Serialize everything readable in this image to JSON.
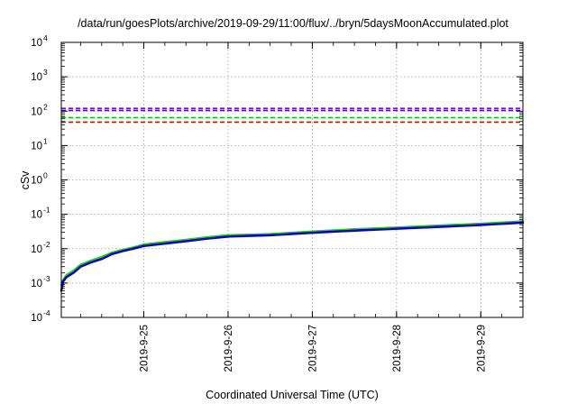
{
  "colors": {
    "background": "#ffffff",
    "frame": "#000000",
    "grid": "#a0a0a0",
    "series_blue": "#0000cc",
    "series_green": "#22cc22",
    "threshold_purple": "#9400d3",
    "threshold_blue": "#2222bb",
    "threshold_green": "#00cc00",
    "threshold_red": "#dd0000"
  },
  "chart_data": {
    "type": "line",
    "title": "/data/run/goesPlots/archive/2019-09-29/11:00/flux/../bryn/5daysMoonAccumulated.plot",
    "xlabel": "Coordinated Universal Time (UTC)",
    "ylabel": "cSv",
    "y_scale": "log",
    "ylim": [
      0.0001,
      10000
    ],
    "y_ticks": [
      {
        "value": 0.0001,
        "base": "10",
        "exp": "-4"
      },
      {
        "value": 0.001,
        "base": "10",
        "exp": "-3"
      },
      {
        "value": 0.01,
        "base": "10",
        "exp": "-2"
      },
      {
        "value": 0.1,
        "base": "10",
        "exp": "-1"
      },
      {
        "value": 1,
        "base": "10",
        "exp": "0"
      },
      {
        "value": 10,
        "base": "10",
        "exp": "1"
      },
      {
        "value": 100,
        "base": "10",
        "exp": "2"
      },
      {
        "value": 1000,
        "base": "10",
        "exp": "3"
      },
      {
        "value": 10000,
        "base": "10",
        "exp": "4"
      }
    ],
    "xlim": [
      "2019-09-24T00:30",
      "2019-09-29T12:00"
    ],
    "x_ticks": [
      {
        "label": "2019-9-25",
        "value": "2019-09-25T00:00"
      },
      {
        "label": "2019-9-26",
        "value": "2019-09-26T00:00"
      },
      {
        "label": "2019-9-27",
        "value": "2019-09-27T00:00"
      },
      {
        "label": "2019-9-28",
        "value": "2019-09-28T00:00"
      },
      {
        "label": "2019-9-29",
        "value": "2019-09-29T00:00"
      }
    ],
    "grid": true,
    "legend": "none",
    "thresholds": [
      {
        "value": 120,
        "color": "#9400d3",
        "style": "dashed"
      },
      {
        "value": 105,
        "color": "#2222bb",
        "style": "dashed"
      },
      {
        "value": 65,
        "color": "#00cc00",
        "style": "dashed"
      },
      {
        "value": 48,
        "color": "#dd0000",
        "style": "dashed"
      }
    ],
    "series": [
      {
        "color": "#22cc22",
        "width": 2.5,
        "x": [
          "2019-09-24T00:30",
          "2019-09-24T01:00",
          "2019-09-24T02:00",
          "2019-09-24T04:00",
          "2019-09-24T06:00",
          "2019-09-24T09:00",
          "2019-09-24T12:00",
          "2019-09-24T15:00",
          "2019-09-24T18:00",
          "2019-09-24T21:00",
          "2019-09-25T00:00",
          "2019-09-25T06:00",
          "2019-09-25T12:00",
          "2019-09-25T18:00",
          "2019-09-26T00:00",
          "2019-09-26T12:00",
          "2019-09-27T00:00",
          "2019-09-27T12:00",
          "2019-09-28T00:00",
          "2019-09-28T12:00",
          "2019-09-29T00:00",
          "2019-09-29T12:00"
        ],
        "y": [
          0.00085,
          0.0012,
          0.0017,
          0.0023,
          0.0034,
          0.0045,
          0.0057,
          0.0077,
          0.0092,
          0.0108,
          0.0132,
          0.0155,
          0.018,
          0.0215,
          0.0245,
          0.0265,
          0.0315,
          0.0365,
          0.041,
          0.047,
          0.053,
          0.062
        ]
      },
      {
        "color": "#0000cc",
        "width": 2.5,
        "x": [
          "2019-09-24T00:30",
          "2019-09-24T01:00",
          "2019-09-24T02:00",
          "2019-09-24T04:00",
          "2019-09-24T06:00",
          "2019-09-24T09:00",
          "2019-09-24T12:00",
          "2019-09-24T15:00",
          "2019-09-24T18:00",
          "2019-09-24T21:00",
          "2019-09-25T00:00",
          "2019-09-25T06:00",
          "2019-09-25T12:00",
          "2019-09-25T18:00",
          "2019-09-26T00:00",
          "2019-09-26T12:00",
          "2019-09-27T00:00",
          "2019-09-27T12:00",
          "2019-09-28T00:00",
          "2019-09-28T12:00",
          "2019-09-29T00:00",
          "2019-09-29T12:00"
        ],
        "y": [
          0.0006,
          0.0011,
          0.0015,
          0.002,
          0.003,
          0.004,
          0.005,
          0.007,
          0.0085,
          0.01,
          0.012,
          0.014,
          0.0165,
          0.0195,
          0.0225,
          0.0245,
          0.029,
          0.0335,
          0.038,
          0.043,
          0.049,
          0.057
        ]
      }
    ]
  }
}
